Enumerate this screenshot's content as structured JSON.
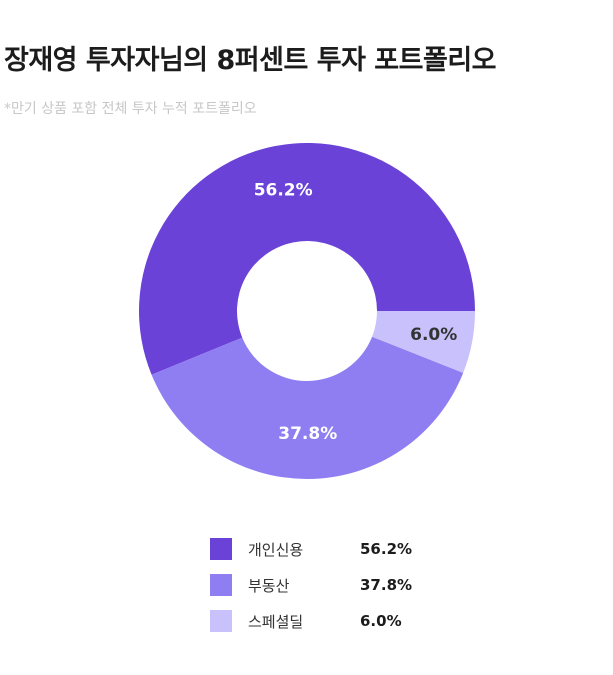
{
  "header": {
    "title": "장재영 투자자님의 8퍼센트 투자 포트폴리오",
    "subtitle": "*만기 상품 포함 전체 투자 누적 포트폴리오"
  },
  "chart_data": {
    "type": "pie",
    "title": "장재영 투자자님의 8퍼센트 투자 포트폴리오",
    "subtitle": "*만기 상품 포함 전체 투자 누적 포트폴리오",
    "donut": true,
    "legend_position": "bottom",
    "slices": [
      {
        "label": "개인신용",
        "value": 56.2,
        "display": "56.2%",
        "color": "#6a42d8",
        "label_color": "#ffffff"
      },
      {
        "label": "부동산",
        "value": 37.8,
        "display": "37.8%",
        "color": "#8f7ef1",
        "label_color": "#ffffff"
      },
      {
        "label": "스페셜딜",
        "value": 6.0,
        "display": "6.0%",
        "color": "#c8c1fb",
        "label_color": "#333333"
      }
    ]
  }
}
